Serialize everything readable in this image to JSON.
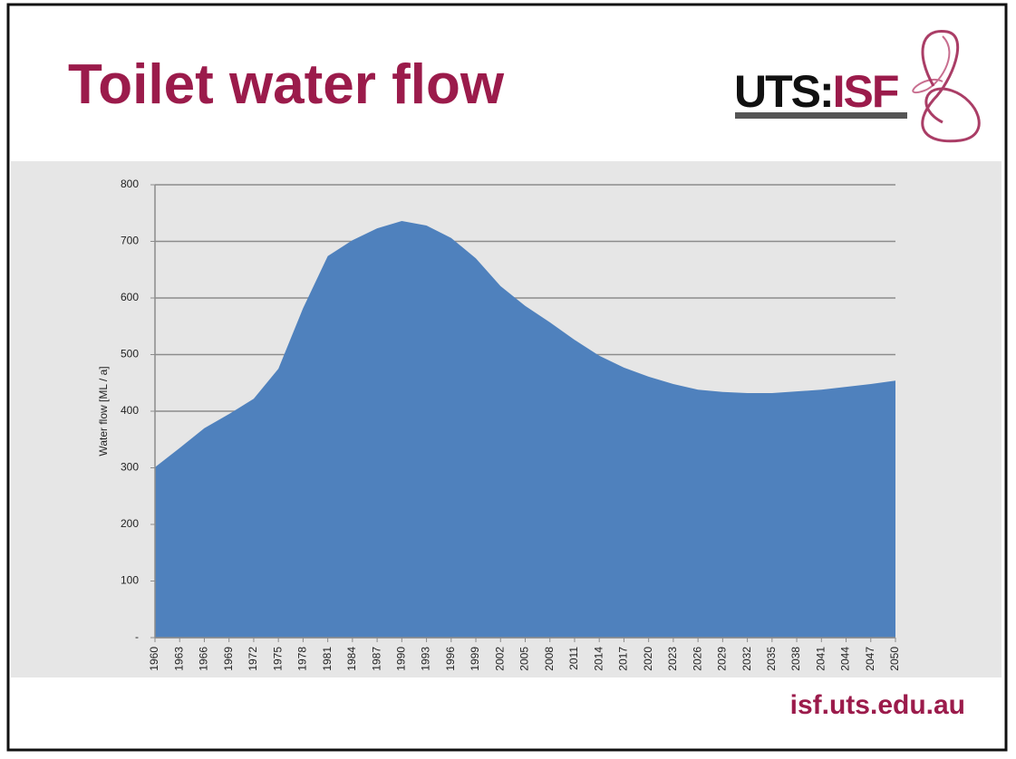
{
  "header": {
    "title": "Toilet water flow",
    "logo": {
      "left": "UTS:",
      "right": "ISF"
    }
  },
  "footer": {
    "url": "isf.uts.edu.au"
  },
  "chart_data": {
    "type": "area",
    "y_label": "Water flow [ML / a]",
    "x": [
      1960,
      1963,
      1966,
      1969,
      1972,
      1975,
      1978,
      1981,
      1984,
      1987,
      1990,
      1993,
      1996,
      1999,
      2002,
      2005,
      2008,
      2011,
      2014,
      2017,
      2020,
      2023,
      2026,
      2029,
      2032,
      2035,
      2038,
      2041,
      2044,
      2047,
      2050
    ],
    "values": [
      301,
      335,
      370,
      395,
      422,
      475,
      582,
      674,
      702,
      723,
      736,
      728,
      706,
      670,
      621,
      586,
      557,
      526,
      498,
      477,
      461,
      448,
      438,
      434,
      432,
      432,
      435,
      438,
      443,
      448,
      454
    ],
    "color": "#4f81bd",
    "xlim": [
      1960,
      2050
    ],
    "ylim": [
      0,
      800
    ],
    "xticks": [
      1960,
      1963,
      1966,
      1969,
      1972,
      1975,
      1978,
      1981,
      1984,
      1987,
      1990,
      1993,
      1996,
      1999,
      2002,
      2005,
      2008,
      2011,
      2014,
      2017,
      2020,
      2023,
      2026,
      2029,
      2032,
      2035,
      2038,
      2041,
      2044,
      2047,
      2050
    ],
    "yticks": [
      {
        "value": 0,
        "label": "-"
      },
      100,
      200,
      300,
      400,
      500,
      600,
      700,
      800
    ],
    "grid": true
  }
}
